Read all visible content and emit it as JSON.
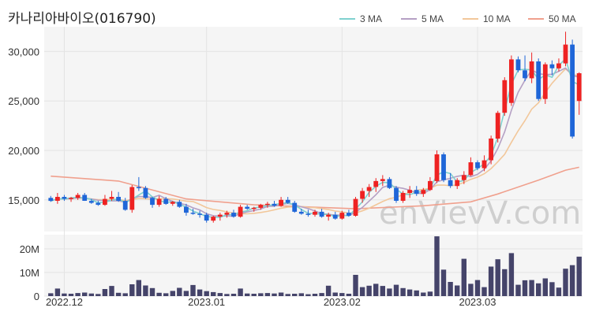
{
  "chart_data": {
    "type": "candlestick",
    "title": "카나리아바이오(016790)",
    "watermark": "enVievV.com",
    "up_color": "#ee2222",
    "down_color": "#1f66d8",
    "volume_color": "#45446a",
    "legend": [
      {
        "name": "3 MA",
        "color": "#7fd1cf"
      },
      {
        "name": "5 MA",
        "color": "#b5a0c4"
      },
      {
        "name": "10 MA",
        "color": "#f2c79a"
      },
      {
        "name": "50 MA",
        "color": "#f0a08d"
      }
    ],
    "price_axis": {
      "ticks": [
        15000,
        20000,
        25000,
        30000
      ],
      "tick_labels": [
        "15,000",
        "20,000",
        "25,000",
        "30,000"
      ],
      "ylim": [
        11800,
        32500
      ]
    },
    "volume_axis": {
      "ticks": [
        0,
        10,
        20
      ],
      "tick_labels": [
        "0",
        "10M",
        "20M"
      ],
      "unit": "M",
      "ylim": [
        0,
        26
      ]
    },
    "x_labels": [
      {
        "label": "2022.12",
        "index": 2
      },
      {
        "label": "2023.01",
        "index": 23
      },
      {
        "label": "2023.02",
        "index": 43
      },
      {
        "label": "2023.03",
        "index": 63
      }
    ],
    "candles": [
      [
        15200,
        15400,
        14800,
        14900
      ],
      [
        14900,
        15700,
        14600,
        15300
      ],
      [
        15300,
        15500,
        14900,
        15100
      ],
      [
        15100,
        15300,
        14800,
        15200
      ],
      [
        15200,
        15700,
        15000,
        15500
      ],
      [
        15500,
        15700,
        14900,
        14900
      ],
      [
        14900,
        15100,
        14600,
        14700
      ],
      [
        14700,
        14900,
        14400,
        14500
      ],
      [
        14500,
        15500,
        14400,
        15100
      ],
      [
        15100,
        15900,
        14900,
        15300
      ],
      [
        15300,
        15800,
        14800,
        14900
      ],
      [
        14900,
        15200,
        13900,
        14000
      ],
      [
        14000,
        16500,
        13700,
        16300
      ],
      [
        16300,
        17300,
        15900,
        16200
      ],
      [
        16200,
        16400,
        15100,
        15200
      ],
      [
        15200,
        15300,
        14200,
        14500
      ],
      [
        14500,
        15400,
        14300,
        15100
      ],
      [
        15100,
        15300,
        14500,
        14600
      ],
      [
        14600,
        14900,
        14400,
        14800
      ],
      [
        14800,
        15000,
        14200,
        14300
      ],
      [
        14300,
        14600,
        13400,
        13700
      ],
      [
        13700,
        14100,
        13500,
        13600
      ],
      [
        13600,
        13900,
        13200,
        13500
      ],
      [
        13500,
        13700,
        12700,
        12900
      ],
      [
        12900,
        13400,
        12700,
        13300
      ],
      [
        13300,
        13700,
        12900,
        13500
      ],
      [
        13500,
        13900,
        13200,
        13700
      ],
      [
        13700,
        14000,
        13200,
        13300
      ],
      [
        13300,
        14500,
        13200,
        14300
      ],
      [
        14300,
        14500,
        14000,
        14100
      ],
      [
        14100,
        14300,
        13800,
        14200
      ],
      [
        14200,
        14600,
        14000,
        14500
      ],
      [
        14500,
        14800,
        14200,
        14600
      ],
      [
        14600,
        14900,
        14300,
        14400
      ],
      [
        14400,
        15300,
        14300,
        15000
      ],
      [
        15000,
        15300,
        14600,
        14700
      ],
      [
        14700,
        14900,
        13700,
        13800
      ],
      [
        13800,
        14100,
        13500,
        13600
      ],
      [
        13600,
        14000,
        13300,
        13500
      ],
      [
        13500,
        14000,
        13300,
        13800
      ],
      [
        13800,
        14100,
        13200,
        13300
      ],
      [
        13300,
        13700,
        12900,
        13500
      ],
      [
        13500,
        13800,
        13000,
        13100
      ],
      [
        13100,
        13900,
        13000,
        13700
      ],
      [
        13700,
        14000,
        13300,
        13400
      ],
      [
        13400,
        15300,
        13300,
        15100
      ],
      [
        15100,
        16200,
        14700,
        15900
      ],
      [
        15900,
        16600,
        15300,
        16300
      ],
      [
        16300,
        17200,
        15800,
        16900
      ],
      [
        16900,
        17500,
        16400,
        17100
      ],
      [
        17100,
        17300,
        16100,
        16200
      ],
      [
        16200,
        16400,
        14700,
        14900
      ],
      [
        14900,
        15900,
        14700,
        15700
      ],
      [
        15700,
        16400,
        15200,
        16000
      ],
      [
        16000,
        16400,
        15400,
        15600
      ],
      [
        15600,
        16200,
        15300,
        16000
      ],
      [
        16000,
        17300,
        15900,
        16900
      ],
      [
        16900,
        20000,
        16700,
        19600
      ],
      [
        19600,
        19800,
        16800,
        17000
      ],
      [
        17000,
        17700,
        16200,
        16400
      ],
      [
        16400,
        17200,
        16100,
        17000
      ],
      [
        17000,
        17900,
        16600,
        17500
      ],
      [
        17500,
        19300,
        17400,
        18800
      ],
      [
        18800,
        19000,
        18000,
        18200
      ],
      [
        18200,
        19500,
        17900,
        19000
      ],
      [
        19000,
        21500,
        18600,
        21200
      ],
      [
        21200,
        24000,
        20800,
        23800
      ],
      [
        23800,
        27400,
        23500,
        27100
      ],
      [
        24800,
        29600,
        24500,
        29200
      ],
      [
        29200,
        29500,
        27900,
        28100
      ],
      [
        28100,
        29600,
        27000,
        27300
      ],
      [
        27300,
        29900,
        26800,
        29000
      ],
      [
        29000,
        29300,
        25000,
        25200
      ],
      [
        25200,
        28900,
        24700,
        28700
      ],
      [
        28700,
        29100,
        27600,
        28300
      ],
      [
        28300,
        29300,
        28000,
        28800
      ],
      [
        28800,
        32000,
        28500,
        30700
      ],
      [
        30700,
        31200,
        21200,
        21400
      ],
      [
        25000,
        27900,
        23600,
        27800
      ]
    ],
    "volume_millions": [
      1.2,
      3.2,
      1.1,
      1.0,
      1.3,
      1.5,
      1.1,
      0.9,
      3.0,
      4.3,
      1.4,
      1.2,
      5.0,
      6.8,
      4.5,
      3.4,
      1.4,
      1.2,
      2.2,
      3.5,
      2.2,
      4.7,
      2.8,
      2.1,
      1.7,
      1.3,
      0.9,
      1.0,
      3.2,
      1.1,
      1.0,
      1.2,
      1.3,
      1.1,
      1.5,
      0.9,
      1.0,
      1.2,
      0.8,
      1.0,
      1.3,
      4.4,
      1.5,
      1.3,
      1.0,
      9.0,
      3.8,
      4.4,
      5.2,
      4.3,
      3.2,
      4.8,
      3.4,
      2.8,
      2.4,
      1.5,
      1.9,
      25.3,
      11.2,
      6.0,
      4.5,
      15.8,
      5.2,
      6.8,
      3.8,
      12.5,
      15.6,
      11.4,
      18.2,
      4.8,
      6.7,
      6.8,
      5.4,
      7.5,
      5.9,
      3.6,
      11.6,
      13.1,
      16.7
    ],
    "ma50_line": [
      [
        0,
        17400
      ],
      [
        10,
        16900
      ],
      [
        20,
        15100
      ],
      [
        30,
        14500
      ],
      [
        45,
        14100
      ],
      [
        55,
        14400
      ],
      [
        62,
        14800
      ],
      [
        66,
        15600
      ],
      [
        72,
        17000
      ],
      [
        76,
        18000
      ],
      [
        78,
        18300
      ]
    ]
  }
}
